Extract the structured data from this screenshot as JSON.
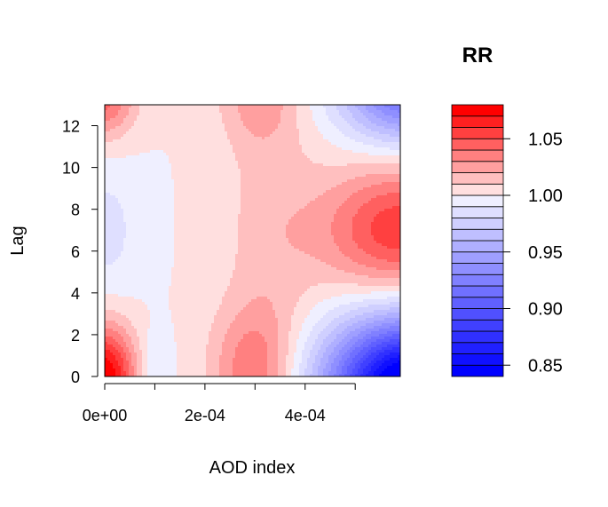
{
  "chart_data": {
    "type": "heatmap",
    "subtype": "filled-contour",
    "title": "",
    "xlabel": "AOD index",
    "ylabel": "Lag",
    "xlim": [
      0,
      0.00059
    ],
    "ylim": [
      0,
      13
    ],
    "x_ticks": [
      0,
      0.0001,
      0.0002,
      0.0003,
      0.0004,
      0.0005
    ],
    "x_tick_labels": [
      "0e+00",
      "",
      "2e-04",
      "",
      "4e-04",
      ""
    ],
    "y_ticks": [
      0,
      2,
      4,
      6,
      8,
      10,
      12
    ],
    "y_tick_labels": [
      "0",
      "2",
      "4",
      "6",
      "8",
      "10",
      "12"
    ],
    "colorbar": {
      "title": "RR",
      "min": 0.84,
      "max": 1.08,
      "levels": [
        0.84,
        0.85,
        0.86,
        0.87,
        0.88,
        0.89,
        0.9,
        0.91,
        0.92,
        0.93,
        0.94,
        0.95,
        0.96,
        0.97,
        0.98,
        0.99,
        1.0,
        1.01,
        1.02,
        1.03,
        1.04,
        1.05,
        1.06,
        1.07,
        1.08
      ],
      "ticks": [
        0.85,
        0.9,
        0.95,
        1.0,
        1.05
      ],
      "tick_labels": [
        "0.85",
        "0.90",
        "0.95",
        "1.00",
        "1.05"
      ],
      "low_color": "#0000ff",
      "mid_color": "#ffffff",
      "high_color": "#ff0000"
    },
    "surface_features": [
      {
        "x": 0.0,
        "lag": 0.0,
        "rr": 1.075
      },
      {
        "x": 0.0,
        "lag": 13.0,
        "rr": 1.045
      },
      {
        "x": 0.0,
        "lag": 7.0,
        "rr": 0.985
      },
      {
        "x": 0.0001,
        "lag": 0.5,
        "rr": 0.985
      },
      {
        "x": 0.0003,
        "lag": 0.5,
        "rr": 1.035
      },
      {
        "x": 0.0003,
        "lag": 13.0,
        "rr": 1.025
      },
      {
        "x": 0.00059,
        "lag": 7.0,
        "rr": 1.055
      },
      {
        "x": 0.00059,
        "lag": 0.0,
        "rr": 0.84
      },
      {
        "x": 0.00059,
        "lag": 13.0,
        "rr": 0.93
      }
    ],
    "grid": false,
    "legend": "right"
  }
}
